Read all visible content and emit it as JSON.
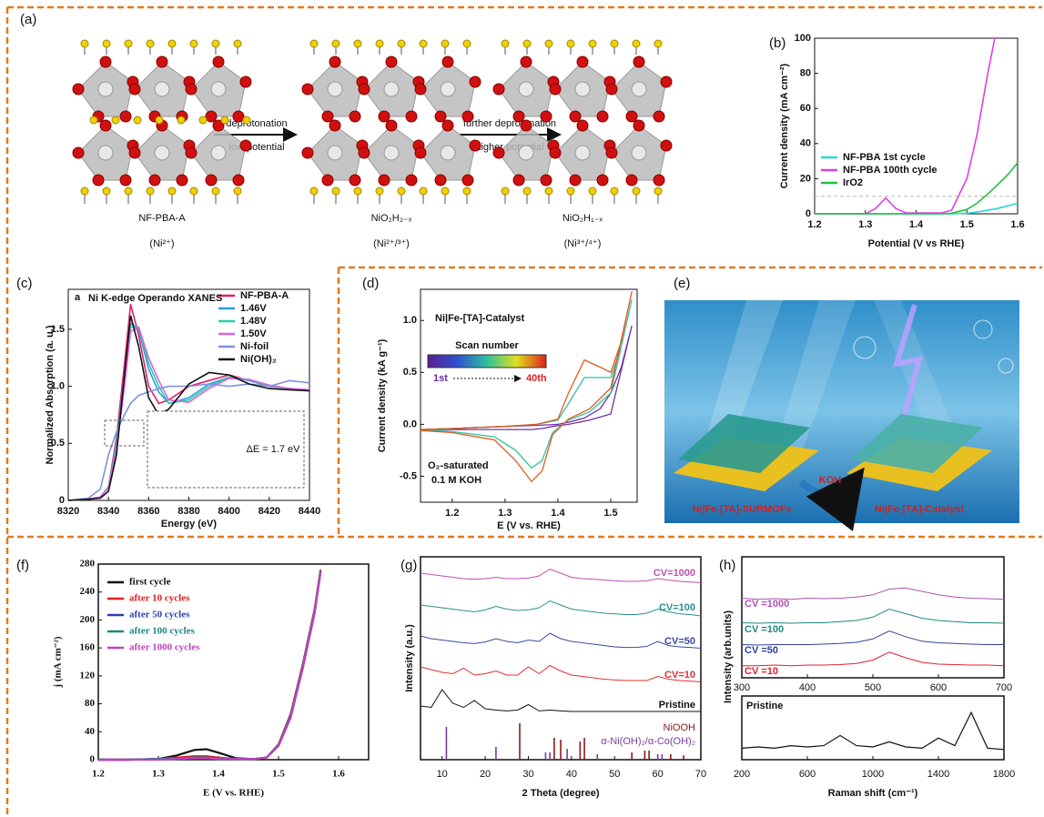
{
  "panel_a": {
    "label": "(a)",
    "arrows": [
      {
        "top": "deprotonation",
        "bottom": "low potential"
      },
      {
        "top": "further deprotonation",
        "bottom": "higher potential"
      }
    ],
    "structures": [
      {
        "name": "NF-PBA-A",
        "state": "(Ni²⁺)"
      },
      {
        "name": "NiO₂H₂₋ₓ",
        "state": "(Ni²⁺/³⁺)"
      },
      {
        "name": "NiO₂H₁₋ₓ",
        "state": "(Ni³⁺/⁴⁺)"
      }
    ]
  },
  "panel_e": {
    "label": "(e)",
    "reagent": "KOH",
    "left": "Ni|Fe-[TA]-SURMOFs",
    "right": "Ni|Fe-[TA]-Catalyst"
  },
  "chart_data": [
    {
      "type": "line",
      "label": "(b)",
      "xlabel": "Potential (V vs RHE)",
      "ylabel": "Current density (mA cm⁻²)",
      "x": [
        1.2,
        1.3,
        1.32,
        1.34,
        1.36,
        1.38,
        1.45,
        1.47,
        1.5,
        1.52,
        1.54,
        1.555,
        1.58,
        1.6
      ],
      "series": [
        {
          "name": "NF-PBA 1st cycle",
          "color": "#2ad4e0",
          "values": [
            0,
            0,
            0,
            0,
            0,
            0,
            0,
            0,
            0.3,
            1,
            2,
            2.7,
            4.5,
            6
          ]
        },
        {
          "name": "NF-PBA 100th cycle",
          "color": "#e040e0",
          "values": [
            0,
            0,
            3,
            9,
            3,
            0.5,
            0.5,
            2,
            20,
            45,
            78,
            100,
            null,
            null
          ]
        },
        {
          "name": "IrO2",
          "color": "#20c040",
          "values": [
            0,
            0,
            0,
            0,
            0,
            0,
            0,
            0.3,
            2.5,
            6,
            11,
            15,
            22,
            29
          ]
        }
      ],
      "reference_line": 10,
      "xlim": [
        1.2,
        1.6
      ],
      "ylim": [
        0,
        100
      ],
      "xticks": [
        1.2,
        1.3,
        1.4,
        1.5,
        1.6
      ],
      "yticks": [
        0,
        20,
        40,
        60,
        80,
        100
      ]
    },
    {
      "type": "line",
      "label": "(c)",
      "panel_letter": "a",
      "title": "Ni K-edge Operando XANES",
      "xlabel": "Energy (eV)",
      "ylabel": "Normalized Absorption (a. u.)",
      "annotation": "ΔE = 1.7 eV",
      "x": [
        8320,
        8330,
        8336,
        8340,
        8344,
        8348,
        8351,
        8355,
        8360,
        8365,
        8370,
        8380,
        8390,
        8400,
        8410,
        8420,
        8430,
        8440
      ],
      "series": [
        {
          "name": "NF-PBA-A",
          "color": "#e0206a",
          "values": [
            0,
            0.01,
            0.03,
            0.12,
            0.55,
            1.2,
            1.72,
            1.45,
            1.0,
            0.85,
            0.88,
            1.0,
            1.05,
            1.1,
            1.05,
            1.0,
            0.98,
            0.97
          ]
        },
        {
          "name": "1.46V",
          "color": "#2aa0e0",
          "values": [
            0,
            0.01,
            0.03,
            0.12,
            0.5,
            1.1,
            1.55,
            1.5,
            1.15,
            0.95,
            0.85,
            0.9,
            1.02,
            1.08,
            1.05,
            1.0,
            0.98,
            0.97
          ]
        },
        {
          "name": "1.48V",
          "color": "#28d0a0",
          "values": [
            0,
            0.01,
            0.03,
            0.12,
            0.48,
            1.05,
            1.52,
            1.52,
            1.2,
            1.0,
            0.85,
            0.88,
            1.0,
            1.08,
            1.06,
            1.0,
            0.98,
            0.97
          ]
        },
        {
          "name": "1.50V",
          "color": "#e060e0",
          "values": [
            0,
            0.01,
            0.03,
            0.11,
            0.45,
            1.0,
            1.48,
            1.52,
            1.25,
            1.05,
            0.88,
            0.86,
            0.98,
            1.07,
            1.06,
            1.01,
            0.98,
            0.97
          ]
        },
        {
          "name": "Ni-foil",
          "color": "#8090e0",
          "values": [
            0,
            0.02,
            0.1,
            0.4,
            0.6,
            0.75,
            0.85,
            0.92,
            0.95,
            0.98,
            1.0,
            1.0,
            1.02,
            1.0,
            1.02,
            1.0,
            1.05,
            1.03
          ]
        },
        {
          "name": "Ni(OH)₂",
          "color": "#111111",
          "values": [
            0,
            0.01,
            0.02,
            0.08,
            0.4,
            1.1,
            1.62,
            1.35,
            0.9,
            0.75,
            0.8,
            1.02,
            1.12,
            1.1,
            1.02,
            0.98,
            0.97,
            0.96
          ]
        }
      ],
      "xlim": [
        8320,
        8440
      ],
      "ylim": [
        0,
        1.85
      ],
      "xticks": [
        8320,
        8340,
        8360,
        8380,
        8400,
        8420,
        8440
      ],
      "yticks": [
        0,
        0.5,
        {
          "value": 1,
          "label": "1.0"
        },
        1.5
      ]
    },
    {
      "type": "line",
      "label": "(d)",
      "title": "Ni|Fe-[TA]-Catalyst",
      "xlabel": "E (V vs. RHE)",
      "ylabel": "Current density (kA g⁻¹)",
      "colorbar": {
        "title": "Scan number",
        "start": "1st",
        "end": "40th"
      },
      "annotations": [
        "O₂-saturated",
        "0.1 M KOH"
      ],
      "x": [
        1.14,
        1.2,
        1.3,
        1.36,
        1.4,
        1.42,
        1.45,
        1.48,
        1.5,
        1.52,
        1.54,
        1.5,
        1.46,
        1.42,
        1.39,
        1.37,
        1.35,
        1.32,
        1.28,
        1.2,
        1.14
      ],
      "series": [
        {
          "color": "#7030a0",
          "values": [
            -0.05,
            -0.04,
            -0.02,
            -0.01,
            0.0,
            0.02,
            0.06,
            0.15,
            0.3,
            0.55,
            0.95,
            0.1,
            0.04,
            0.0,
            -0.02,
            -0.04,
            -0.05,
            -0.05,
            -0.05,
            -0.05,
            -0.05
          ]
        },
        {
          "color": "#30c0a0",
          "values": [
            -0.05,
            -0.04,
            -0.02,
            0.0,
            0.04,
            0.2,
            0.45,
            0.45,
            0.45,
            0.75,
            1.2,
            0.3,
            0.12,
            0.04,
            -0.08,
            -0.35,
            -0.42,
            -0.25,
            -0.12,
            -0.07,
            -0.05
          ]
        },
        {
          "color": "#e05a20",
          "values": [
            -0.05,
            -0.04,
            -0.02,
            0.0,
            0.05,
            0.3,
            0.62,
            0.55,
            0.5,
            0.8,
            1.28,
            0.35,
            0.15,
            0.05,
            -0.1,
            -0.45,
            -0.55,
            -0.35,
            -0.15,
            -0.08,
            -0.06
          ]
        }
      ],
      "xlim": [
        1.14,
        1.55
      ],
      "ylim": [
        -0.75,
        1.3
      ],
      "xticks": [
        1.2,
        1.3,
        1.4,
        1.5
      ],
      "yticks": [
        -0.5,
        {
          "value": 0,
          "label": "0.0"
        },
        0.5,
        {
          "value": 1,
          "label": "1.0"
        }
      ]
    },
    {
      "type": "line",
      "label": "(f)",
      "xlabel": "E (V vs. RHE)",
      "ylabel": "j (mA cm⁻²)",
      "x": [
        1.2,
        1.25,
        1.3,
        1.33,
        1.36,
        1.38,
        1.4,
        1.43,
        1.46,
        1.48,
        1.5,
        1.52,
        1.54,
        1.56,
        1.57
      ],
      "series": [
        {
          "name": "first cycle",
          "color": "#111111",
          "values": [
            0,
            0,
            1,
            6,
            14,
            15,
            10,
            2,
            1,
            3,
            20,
            60,
            130,
            210,
            270
          ]
        },
        {
          "name": "after 10 cycles",
          "color": "#e02020",
          "values": [
            0,
            0,
            1,
            3,
            5,
            5,
            3,
            1,
            1,
            3,
            22,
            65,
            135,
            215,
            272
          ]
        },
        {
          "name": "after 50 cycles",
          "color": "#2a40b0",
          "values": [
            0,
            0,
            1,
            2,
            3,
            3,
            2,
            1,
            1,
            3,
            21,
            63,
            133,
            212,
            270
          ]
        },
        {
          "name": "after 100 cycles",
          "color": "#1a8a7a",
          "values": [
            0,
            0,
            1,
            2,
            3,
            3,
            2,
            1,
            1,
            3,
            21,
            62,
            132,
            212,
            270
          ]
        },
        {
          "name": "after 1000 cycles",
          "color": "#c040c0",
          "values": [
            0,
            0,
            0,
            1,
            2,
            2,
            1,
            1,
            1,
            3,
            20,
            60,
            130,
            210,
            268
          ]
        }
      ],
      "xlim": [
        1.2,
        1.65
      ],
      "ylim": [
        0,
        280
      ],
      "xticks": [
        1.2,
        1.3,
        1.4,
        1.5,
        1.6
      ],
      "yticks": [
        0,
        40,
        80,
        120,
        160,
        200,
        240,
        280
      ]
    },
    {
      "type": "offset-line",
      "label": "(g)",
      "xlabel": "2 Theta (degree)",
      "ylabel": "Intensity (a.u.)",
      "x": [
        5,
        7.5,
        10,
        12.5,
        15,
        17.5,
        20,
        22.5,
        25,
        27.5,
        30,
        32.5,
        35,
        37.5,
        40,
        42.5,
        45,
        47.5,
        50,
        52.5,
        55,
        57.5,
        60,
        62.5,
        65,
        67.5,
        70
      ],
      "series": [
        {
          "name": "CV=1000",
          "color": "#c050b0",
          "values": [
            0.5,
            0.45,
            0.4,
            0.35,
            0.3,
            0.28,
            0.3,
            0.35,
            0.3,
            0.3,
            0.32,
            0.4,
            0.65,
            0.5,
            0.35,
            0.3,
            0.28,
            0.25,
            0.22,
            0.2,
            0.2,
            0.22,
            0.3,
            0.25,
            0.2,
            0.18,
            0.15
          ]
        },
        {
          "name": "CV=100",
          "color": "#2a9090",
          "values": [
            0.6,
            0.55,
            0.5,
            0.45,
            0.4,
            0.35,
            0.42,
            0.55,
            0.45,
            0.4,
            0.42,
            0.5,
            0.75,
            0.6,
            0.45,
            0.4,
            0.35,
            0.3,
            0.28,
            0.25,
            0.25,
            0.3,
            0.45,
            0.35,
            0.28,
            0.25,
            0.2
          ]
        },
        {
          "name": "CV=50",
          "color": "#3a4aa0",
          "values": [
            0.7,
            0.6,
            0.55,
            0.5,
            0.45,
            0.42,
            0.48,
            0.6,
            0.5,
            0.45,
            0.55,
            0.5,
            0.8,
            0.6,
            0.5,
            0.45,
            0.4,
            0.35,
            0.3,
            0.28,
            0.28,
            0.32,
            0.5,
            0.35,
            0.3,
            0.28,
            0.25
          ]
        },
        {
          "name": "CV=10",
          "color": "#e03030",
          "values": [
            0.8,
            0.7,
            0.6,
            0.55,
            0.75,
            0.5,
            0.55,
            0.65,
            0.5,
            0.5,
            0.8,
            0.55,
            0.85,
            0.65,
            0.5,
            0.45,
            0.4,
            0.35,
            0.32,
            0.3,
            0.3,
            0.3,
            0.45,
            0.35,
            0.3,
            0.28,
            0.25
          ]
        },
        {
          "name": "Pristine",
          "color": "#111111",
          "values": [
            0.3,
            0.25,
            0.9,
            0.4,
            0.25,
            0.5,
            0.2,
            0.15,
            0.12,
            0.15,
            0.35,
            0.12,
            0.15,
            0.12,
            0.1,
            0.1,
            0.1,
            0.1,
            0.1,
            0.1,
            0.1,
            0.1,
            0.1,
            0.1,
            0.1,
            0.1,
            0.1
          ]
        }
      ],
      "references": [
        {
          "name": "NiOOH",
          "color": "#8b1a1a",
          "positions": [
            28,
            36,
            37.5,
            42,
            43,
            54,
            57,
            58,
            63,
            66
          ],
          "heights": [
            1,
            0.6,
            0.55,
            0.5,
            0.6,
            0.2,
            0.25,
            0.25,
            0.15,
            0.12
          ]
        },
        {
          "name": "α-Ni(OH)₂/α-Co(OH)₂",
          "color": "#7a3aa0",
          "positions": [
            11,
            22.5,
            34,
            35,
            39,
            46,
            60,
            61
          ],
          "heights": [
            0.9,
            0.35,
            0.2,
            0.2,
            0.3,
            0.15,
            0.15,
            0.15
          ]
        }
      ],
      "xlim": [
        5,
        70
      ],
      "xticks": [
        10,
        20,
        30,
        40,
        50,
        60,
        70
      ]
    },
    {
      "type": "offset-line",
      "label": "(h)",
      "ylabel": "Intensity (arb.units)",
      "x": [
        300,
        325,
        350,
        375,
        400,
        425,
        450,
        475,
        500,
        525,
        550,
        575,
        600,
        625,
        650,
        675,
        700
      ],
      "series": [
        {
          "name": "CV =1000",
          "color": "#b050b0",
          "values": [
            0.3,
            0.25,
            0.28,
            0.25,
            0.3,
            0.28,
            0.3,
            0.35,
            0.45,
            0.7,
            0.75,
            0.6,
            0.45,
            0.35,
            0.3,
            0.28,
            0.25
          ]
        },
        {
          "name": "CV =100",
          "color": "#208880",
          "values": [
            0.3,
            0.28,
            0.3,
            0.28,
            0.3,
            0.3,
            0.35,
            0.4,
            0.55,
            0.9,
            0.7,
            0.5,
            0.4,
            0.35,
            0.3,
            0.3,
            0.28
          ]
        },
        {
          "name": "CV =50",
          "color": "#3040a0",
          "values": [
            0.3,
            0.28,
            0.3,
            0.3,
            0.3,
            0.32,
            0.35,
            0.4,
            0.55,
            0.9,
            0.65,
            0.45,
            0.38,
            0.35,
            0.32,
            0.3,
            0.3
          ]
        },
        {
          "name": "CV =10",
          "color": "#e02030",
          "values": [
            0.25,
            0.25,
            0.28,
            0.25,
            0.28,
            0.28,
            0.3,
            0.35,
            0.5,
            0.85,
            0.6,
            0.4,
            0.32,
            0.3,
            0.28,
            0.28,
            0.25
          ]
        }
      ],
      "xlim": [
        300,
        700
      ],
      "xticks": [
        300,
        400,
        500,
        600,
        700
      ]
    },
    {
      "type": "offset-line",
      "xlabel": "Raman shift (cm⁻¹)",
      "x": [
        200,
        300,
        400,
        500,
        600,
        700,
        800,
        900,
        1000,
        1100,
        1200,
        1300,
        1400,
        1500,
        1600,
        1700,
        1800
      ],
      "series": [
        {
          "name": "Pristine",
          "color": "#111111",
          "values": [
            0.2,
            0.25,
            0.2,
            0.3,
            0.25,
            0.3,
            0.7,
            0.3,
            0.25,
            0.45,
            0.25,
            0.2,
            0.6,
            0.3,
            1.6,
            0.2,
            0.15
          ]
        }
      ],
      "xlim": [
        200,
        1800
      ],
      "xticks": [
        200,
        600,
        1000,
        1400,
        1800
      ]
    }
  ]
}
